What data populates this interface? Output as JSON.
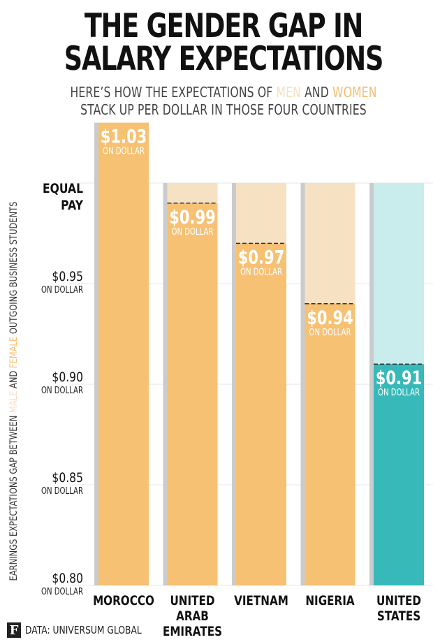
{
  "title_line1": "THE GENDER GAP IN",
  "title_line2": "SALARY EXPECTATIONS",
  "subtitle": {
    "line1_pre": "HERE’S HOW THE EXPECTATIONS OF ",
    "men": "MEN",
    "and": " AND ",
    "women": "WOMEN",
    "line2": "STACK UP PER DOLLAR IN THOSE FOUR COUNTRIES"
  },
  "ylabel": {
    "pre": "EARNINGS EXPECTATIONS GAP BETWEEN ",
    "male": "MALE",
    "and": " AND ",
    "female": "FEMALE",
    "post": " OUTGOING BUSINESS STUDENTS"
  },
  "source": "DATA: UNIVERSUM GLOBAL",
  "logo": "F",
  "chart_data": {
    "type": "bar",
    "ylim": [
      0.8,
      1.03
    ],
    "equal_pay_value": 1.0,
    "equal_pay_label": [
      "EQUAL",
      "PAY"
    ],
    "unit_label": "ON DOLLAR",
    "yticks": [
      {
        "value": 0.95,
        "label": "$0.95"
      },
      {
        "value": 0.9,
        "label": "$0.90"
      },
      {
        "value": 0.85,
        "label": "$0.85"
      },
      {
        "value": 0.8,
        "label": "$0.80"
      }
    ],
    "categories": [
      {
        "name": "MOROCCO",
        "lines": [
          "MOROCCO"
        ],
        "value": 1.03,
        "label": "$1.03",
        "highlight": false
      },
      {
        "name": "UNITED ARAB EMIRATES",
        "lines": [
          "UNITED",
          "ARAB",
          "EMIRATES"
        ],
        "value": 0.99,
        "label": "$0.99",
        "highlight": false
      },
      {
        "name": "VIETNAM",
        "lines": [
          "VIETNAM"
        ],
        "value": 0.97,
        "label": "$0.97",
        "highlight": false
      },
      {
        "name": "NIGERIA",
        "lines": [
          "NIGERIA"
        ],
        "value": 0.94,
        "label": "$0.94",
        "highlight": false
      },
      {
        "name": "UNITED STATES",
        "lines": [
          "UNITED",
          "STATES"
        ],
        "value": 0.91,
        "label": "$0.91",
        "highlight": true
      }
    ],
    "colors": {
      "women_bar": "#f7c173",
      "men_bar": "#f7e1c3",
      "us_bar": "#37b9b9",
      "us_men_bar": "#c9ecec",
      "bar_shadow": "#c9cbcd",
      "grid": "#e4e7ea"
    }
  }
}
